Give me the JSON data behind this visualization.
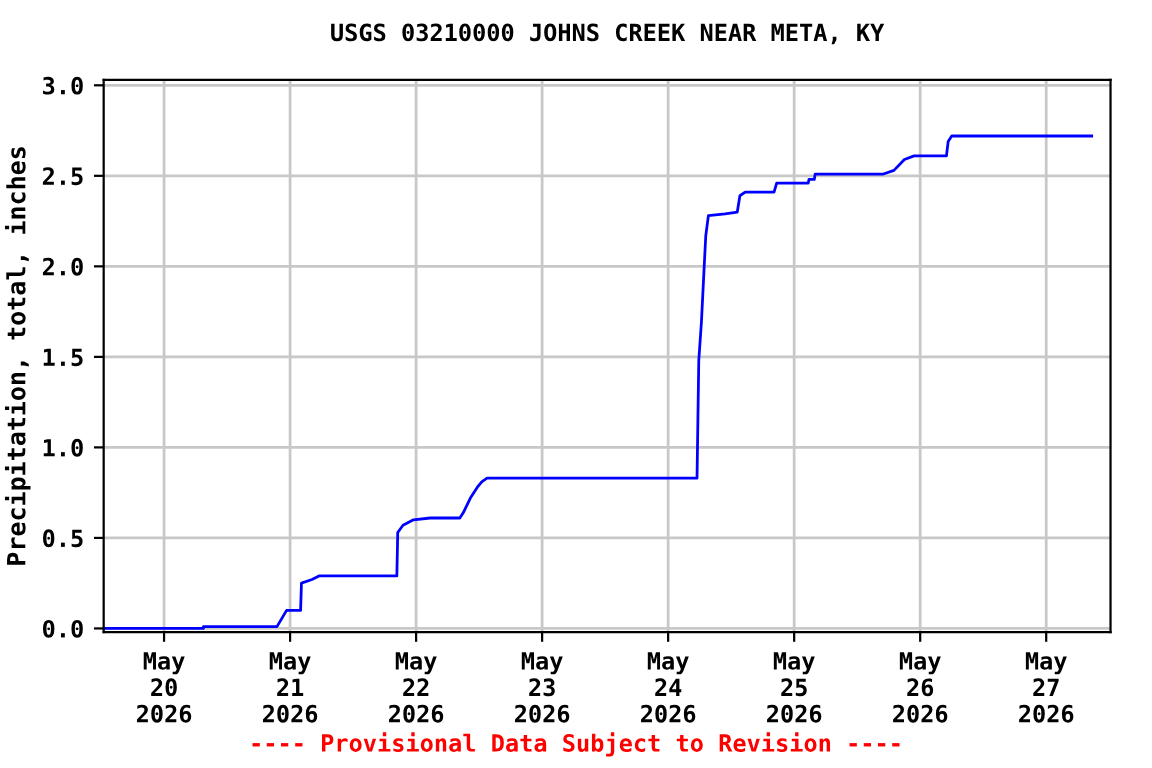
{
  "chart_data": {
    "type": "line",
    "title": "USGS 03210000 JOHNS CREEK NEAR META, KY",
    "ylabel": "Precipitation, total, inches",
    "annotations": [
      "---- Provisional Data Subject to Revision ----"
    ],
    "x": [
      "2026-05-19T12:30",
      "2026-05-20T07:30",
      "2026-05-20T07:30",
      "2026-05-20T21:30",
      "2026-05-20T23:20",
      "2026-05-21T02:00",
      "2026-05-21T02:10",
      "2026-05-21T04:10",
      "2026-05-21T05:30",
      "2026-05-21T20:20",
      "2026-05-21T20:30",
      "2026-05-21T21:30",
      "2026-05-21T23:30",
      "2026-05-22T02:40",
      "2026-05-22T08:20",
      "2026-05-22T09:00",
      "2026-05-22T10:20",
      "2026-05-22T11:40",
      "2026-05-22T12:30",
      "2026-05-22T13:30",
      "2026-05-24T05:30",
      "2026-05-24T05:50",
      "2026-05-24T06:20",
      "2026-05-24T06:50",
      "2026-05-24T07:10",
      "2026-05-24T07:40",
      "2026-05-24T10:50",
      "2026-05-24T13:10",
      "2026-05-24T13:40",
      "2026-05-24T14:40",
      "2026-05-24T20:10",
      "2026-05-24T20:40",
      "2026-05-25T02:40",
      "2026-05-25T02:50",
      "2026-05-25T03:50",
      "2026-05-25T04:00",
      "2026-05-25T17:00",
      "2026-05-25T19:00",
      "2026-05-25T21:00",
      "2026-05-25T22:50",
      "2026-05-26T05:00",
      "2026-05-26T05:20",
      "2026-05-26T06:00",
      "2026-05-27T08:40"
    ],
    "series": [
      {
        "color": "#0000ff",
        "values": [
          0.0,
          0.0,
          0.01,
          0.01,
          0.1,
          0.1,
          0.25,
          0.27,
          0.29,
          0.29,
          0.53,
          0.57,
          0.6,
          0.61,
          0.61,
          0.64,
          0.72,
          0.78,
          0.81,
          0.83,
          0.83,
          1.48,
          1.69,
          1.98,
          2.17,
          2.28,
          2.29,
          2.3,
          2.39,
          2.41,
          2.41,
          2.46,
          2.46,
          2.48,
          2.48,
          2.51,
          2.51,
          2.53,
          2.59,
          2.61,
          2.61,
          2.69,
          2.72,
          2.72
        ]
      }
    ],
    "xlim": [
      "2026-05-19T12:30",
      "2026-05-27T12:15"
    ],
    "xticks": [
      {
        "value": "2026-05-20",
        "label": "May\n20\n2026"
      },
      {
        "value": "2026-05-21",
        "label": "May\n21\n2026"
      },
      {
        "value": "2026-05-22",
        "label": "May\n22\n2026"
      },
      {
        "value": "2026-05-23",
        "label": "May\n23\n2026"
      },
      {
        "value": "2026-05-24",
        "label": "May\n24\n2026"
      },
      {
        "value": "2026-05-25",
        "label": "May\n25\n2026"
      },
      {
        "value": "2026-05-26",
        "label": "May\n26\n2026"
      },
      {
        "value": "2026-05-27",
        "label": "May\n27\n2026"
      }
    ],
    "ylim": [
      -0.02,
      3.03
    ],
    "yticks": [
      {
        "value": 0,
        "label": "0.0"
      },
      {
        "value": 0.5,
        "label": "0.5"
      },
      {
        "value": 1,
        "label": "1.0"
      },
      {
        "value": 1.5,
        "label": "1.5"
      },
      {
        "value": 2,
        "label": "2.0"
      },
      {
        "value": 2.5,
        "label": "2.5"
      },
      {
        "value": 3,
        "label": "3.0"
      }
    ],
    "grid": true,
    "legend": false
  }
}
